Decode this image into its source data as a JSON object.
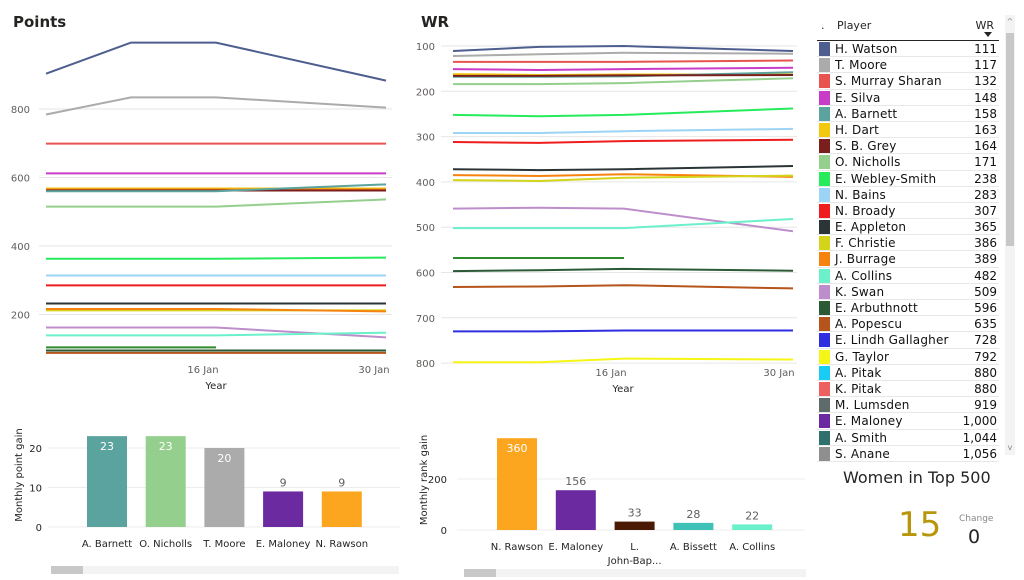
{
  "points_chart": {
    "title": "Points",
    "chart_data": {
      "type": "line",
      "title": "Points",
      "xlabel": "Year",
      "ylabel": "",
      "x_ticks": [
        "16 Jan",
        "30 Jan"
      ],
      "y_ticks": [
        200,
        400,
        600,
        800
      ],
      "ylim": [
        60,
        1000
      ],
      "x_points": 4,
      "series": [
        {
          "name": "H. Watson",
          "color": "#4E5F8F",
          "values": [
            903,
            994,
            994,
            883
          ]
        },
        {
          "name": "T. Moore",
          "color": "#ABABAB",
          "values": [
            784,
            834,
            834,
            804
          ]
        },
        {
          "name": "S. Murray Sharan",
          "color": "#E8534F",
          "values": [
            699,
            699,
            699,
            699
          ]
        },
        {
          "name": "E. Silva",
          "color": "#C83CC8",
          "values": [
            612,
            612,
            612,
            612
          ]
        },
        {
          "name": "H. Dart",
          "color": "#F2C811",
          "values": [
            568,
            568,
            568,
            568
          ]
        },
        {
          "name": "J. Burrage",
          "color": "#F7830F",
          "values": [
            565,
            565,
            565,
            565
          ]
        },
        {
          "name": "S. B. Grey",
          "color": "#7A1E1E",
          "values": [
            562,
            562,
            562,
            562
          ]
        },
        {
          "name": "A. Barnett",
          "color": "#5BA39E",
          "values": [
            560,
            560,
            560,
            580
          ]
        },
        {
          "name": "O. Nicholls",
          "color": "#95CF8E",
          "values": [
            515,
            515,
            515,
            536
          ]
        },
        {
          "name": "E. Webley-Smith",
          "color": "#26EB5A",
          "values": [
            363,
            363,
            363,
            366
          ]
        },
        {
          "name": "N. Bains",
          "color": "#9DD3F5",
          "values": [
            314,
            314,
            314,
            314
          ]
        },
        {
          "name": "N. Broady",
          "color": "#EE1C1C",
          "values": [
            285,
            285,
            285,
            285
          ]
        },
        {
          "name": "E. Appleton",
          "color": "#2B3436",
          "values": [
            232,
            232,
            232,
            232
          ]
        },
        {
          "name": "F. Christie",
          "color": "#D4D41B",
          "values": [
            212,
            212,
            212,
            212
          ]
        },
        {
          "name": "J. Burrage 2",
          "color": "#F7830F",
          "values": [
            216,
            216,
            216,
            209
          ]
        },
        {
          "name": "K. Swan",
          "color": "#BD8ECB",
          "values": [
            162,
            162,
            162,
            133
          ]
        },
        {
          "name": "A. Collins",
          "color": "#6AF0CA",
          "values": [
            139,
            139,
            139,
            147
          ]
        },
        {
          "name": "E. Arbuthnott",
          "color": "#2E8B2E",
          "values": [
            104,
            104,
            104,
            null
          ]
        },
        {
          "name": "E. Arbuthnott 2",
          "color": "#2D5A36",
          "values": [
            95,
            95,
            95,
            95
          ]
        },
        {
          "name": "A. Popescu",
          "color": "#B5541B",
          "values": [
            88,
            88,
            88,
            88
          ]
        }
      ]
    }
  },
  "wr_chart": {
    "title": "WR",
    "chart_data": {
      "type": "line",
      "title": "WR",
      "xlabel": "Year",
      "ylabel": "",
      "x_ticks": [
        "16 Jan",
        "30 Jan"
      ],
      "y_ticks": [
        100,
        200,
        300,
        400,
        500,
        600,
        700,
        800
      ],
      "ylim_inverted": [
        90,
        810
      ],
      "x_points": 4,
      "series": [
        {
          "name": "H. Watson",
          "color": "#4E5F8F",
          "values": [
            111,
            102,
            100,
            111
          ]
        },
        {
          "name": "T. Moore",
          "color": "#ABABAB",
          "values": [
            122,
            118,
            115,
            117
          ]
        },
        {
          "name": "S. Murray Sharan",
          "color": "#E8534F",
          "values": [
            135,
            135,
            135,
            132
          ]
        },
        {
          "name": "E. Silva",
          "color": "#C83CC8",
          "values": [
            151,
            153,
            151,
            148
          ]
        },
        {
          "name": "H. Dart",
          "color": "#F2C811",
          "values": [
            162,
            164,
            163,
            163
          ]
        },
        {
          "name": "A. Barnett",
          "color": "#5BA39E",
          "values": [
            168,
            168,
            167,
            158
          ]
        },
        {
          "name": "S. B. Grey",
          "color": "#7A1E1E",
          "values": [
            166,
            166,
            165,
            164
          ]
        },
        {
          "name": "O. Nicholls",
          "color": "#95CF8E",
          "values": [
            184,
            184,
            182,
            171
          ]
        },
        {
          "name": "E. Webley-Smith",
          "color": "#26EB5A",
          "values": [
            252,
            255,
            252,
            238
          ]
        },
        {
          "name": "N. Bains",
          "color": "#9DD3F5",
          "values": [
            292,
            292,
            288,
            283
          ]
        },
        {
          "name": "N. Broady",
          "color": "#EE1C1C",
          "values": [
            312,
            314,
            310,
            307
          ]
        },
        {
          "name": "E. Appleton",
          "color": "#2B3436",
          "values": [
            372,
            374,
            372,
            365
          ]
        },
        {
          "name": "J. Burrage",
          "color": "#F7830F",
          "values": [
            385,
            387,
            383,
            389
          ]
        },
        {
          "name": "F. Christie",
          "color": "#D4D41B",
          "values": [
            396,
            398,
            391,
            386
          ]
        },
        {
          "name": "K. Swan",
          "color": "#BD8ECB",
          "values": [
            459,
            457,
            459,
            509
          ]
        },
        {
          "name": "A. Collins",
          "color": "#6AF0CA",
          "values": [
            502,
            502,
            502,
            482
          ]
        },
        {
          "name": "E. Arbuthnott",
          "color": "#2E8B2E",
          "values": [
            568,
            568,
            568,
            null
          ]
        },
        {
          "name": "E. Arbuthnott 2",
          "color": "#2D5A36",
          "values": [
            597,
            595,
            592,
            596
          ]
        },
        {
          "name": "A. Popescu",
          "color": "#B5541B",
          "values": [
            632,
            631,
            628,
            635
          ]
        },
        {
          "name": "E. Lindh Gallagher",
          "color": "#2E2EE0",
          "values": [
            730,
            730,
            728,
            728
          ]
        },
        {
          "name": "G. Taylor",
          "color": "#F5F516",
          "values": [
            798,
            798,
            790,
            792
          ]
        }
      ]
    }
  },
  "points_gain_chart": {
    "chart_data": {
      "type": "bar",
      "title": "",
      "xlabel": "",
      "ylabel": "Monthly point gain",
      "ylim": [
        0,
        23
      ],
      "y_ticks": [
        0,
        10,
        20
      ],
      "categories": [
        "A. Barnett",
        "O. Nicholls",
        "T. Moore",
        "E. Maloney",
        "N. Rawson"
      ],
      "values": [
        23,
        23,
        20,
        9,
        9
      ],
      "colors": [
        "#5BA39E",
        "#95CF8E",
        "#ABABAB",
        "#6B2AA0",
        "#FBA61E"
      ],
      "label_inside": [
        true,
        true,
        true,
        false,
        false
      ]
    }
  },
  "rank_gain_chart": {
    "chart_data": {
      "type": "bar",
      "title": "",
      "xlabel": "",
      "ylabel": "Monthly rank gain",
      "ylim": [
        0,
        360
      ],
      "y_ticks": [
        0,
        200
      ],
      "categories": [
        "N. Rawson",
        "E. Maloney",
        "L. John-Bap...",
        "A. Bissett",
        "A. Collins"
      ],
      "category_lines": [
        [
          "N. Rawson"
        ],
        [
          "E. Maloney"
        ],
        [
          "L.",
          "John-Bap..."
        ],
        [
          "A. Bissett"
        ],
        [
          "A. Collins"
        ]
      ],
      "values": [
        360,
        156,
        33,
        28,
        22
      ],
      "colors": [
        "#FBA61E",
        "#6B2AA0",
        "#4A1A05",
        "#3FC1B8",
        "#6AF0CA"
      ],
      "label_inside": [
        true,
        false,
        false,
        false,
        false
      ]
    }
  },
  "table": {
    "col_marker": ".",
    "col_player": "Player",
    "col_wr": "WR",
    "rows": [
      {
        "color": "#4E5F8F",
        "player": "H. Watson",
        "wr": "111"
      },
      {
        "color": "#ABABAB",
        "player": "T. Moore",
        "wr": "117"
      },
      {
        "color": "#E8534F",
        "player": "S. Murray Sharan",
        "wr": "132"
      },
      {
        "color": "#C83CC8",
        "player": "E. Silva",
        "wr": "148"
      },
      {
        "color": "#5BA39E",
        "player": "A. Barnett",
        "wr": "158"
      },
      {
        "color": "#F2C811",
        "player": "H. Dart",
        "wr": "163"
      },
      {
        "color": "#7A1E1E",
        "player": "S. B. Grey",
        "wr": "164"
      },
      {
        "color": "#95CF8E",
        "player": "O. Nicholls",
        "wr": "171"
      },
      {
        "color": "#26EB5A",
        "player": "E. Webley-Smith",
        "wr": "238"
      },
      {
        "color": "#9DD3F5",
        "player": "N. Bains",
        "wr": "283"
      },
      {
        "color": "#EE1C1C",
        "player": "N. Broady",
        "wr": "307"
      },
      {
        "color": "#2B3436",
        "player": "E. Appleton",
        "wr": "365"
      },
      {
        "color": "#D4D41B",
        "player": "F. Christie",
        "wr": "386"
      },
      {
        "color": "#F7830F",
        "player": "J. Burrage",
        "wr": "389"
      },
      {
        "color": "#6AF0CA",
        "player": "A. Collins",
        "wr": "482"
      },
      {
        "color": "#BD8ECB",
        "player": "K. Swan",
        "wr": "509"
      },
      {
        "color": "#2D5A36",
        "player": "E. Arbuthnott",
        "wr": "596"
      },
      {
        "color": "#B5541B",
        "player": "A. Popescu",
        "wr": "635"
      },
      {
        "color": "#2E2EE0",
        "player": "E. Lindh Gallagher",
        "wr": "728"
      },
      {
        "color": "#F5F516",
        "player": "G. Taylor",
        "wr": "792"
      },
      {
        "color": "#18CCF5",
        "player": "A. Pitak",
        "wr": "880"
      },
      {
        "color": "#EE6060",
        "player": "K. Pitak",
        "wr": "880"
      },
      {
        "color": "#5F6B6B",
        "player": "M. Lumsden",
        "wr": "919"
      },
      {
        "color": "#6B2AA0",
        "player": "E. Maloney",
        "wr": "1,000"
      },
      {
        "color": "#2F6F6C",
        "player": "A. Smith",
        "wr": "1,044"
      },
      {
        "color": "#8F8F8F",
        "player": "S. Anane",
        "wr": "1,056"
      }
    ],
    "scroll_up": "^",
    "scroll_down": "v"
  },
  "card": {
    "title": "Women in Top 500",
    "value": "15",
    "change_label": "Change",
    "change_value": "0"
  }
}
